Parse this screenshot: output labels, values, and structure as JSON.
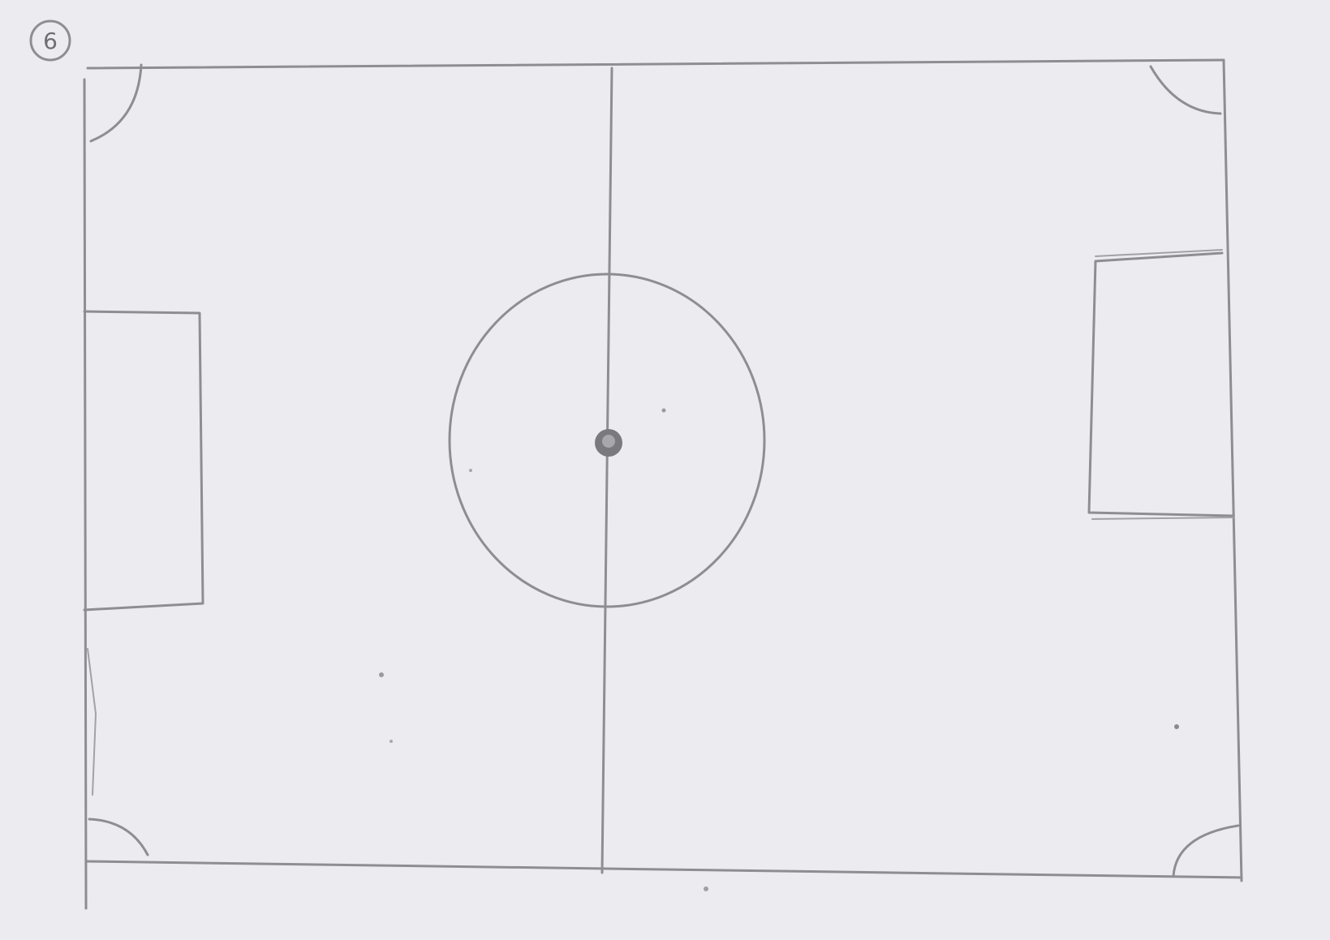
{
  "page_number": "6",
  "colors": {
    "paper": "#ebebf0",
    "pencil": "#8e8e92",
    "center_spot": "#7a7a7e"
  }
}
